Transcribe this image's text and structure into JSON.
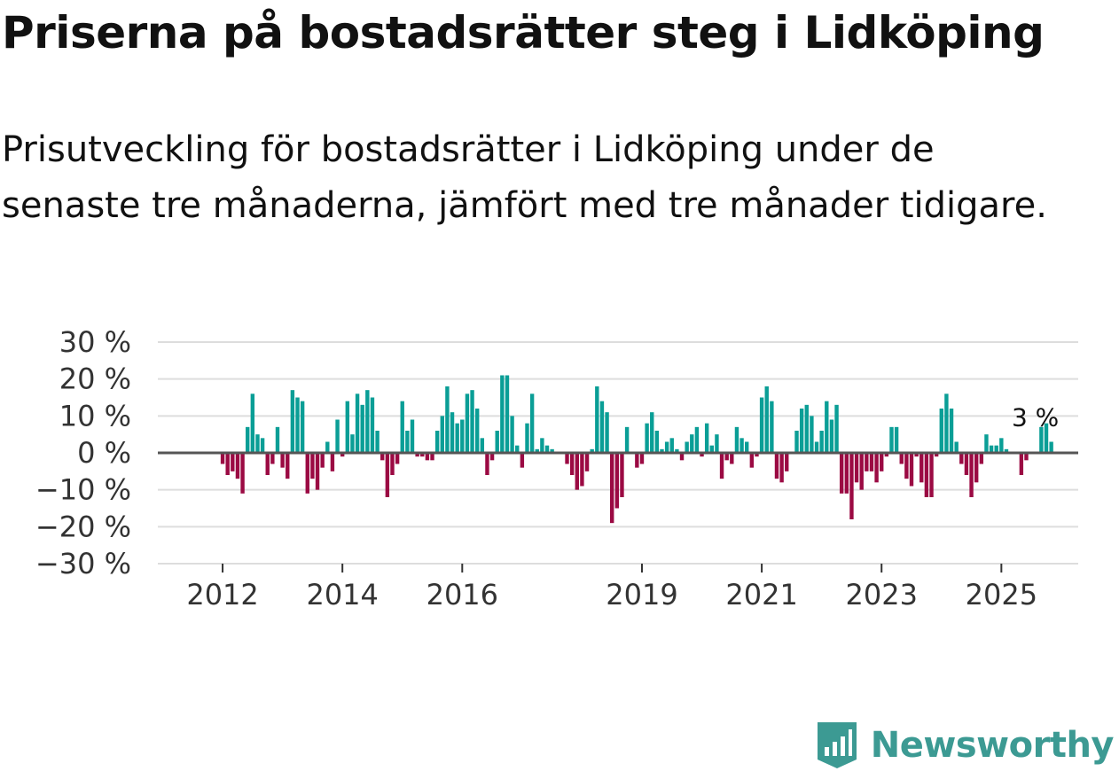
{
  "title": "Priserna på bostadsrätter steg i Lidköping",
  "subtitle": "Prisutveckling för bostadsrätter i Lidköping under de senaste tre månaderna, jämfört med tre månader tidigare.",
  "brand": "Newsworthy",
  "colors": {
    "positive": "#0a9e96",
    "negative": "#9b0a43",
    "grid": "#dddddd",
    "zero": "#555555",
    "brand": "#3c9a93"
  },
  "chart_data": {
    "type": "bar",
    "title": "Priserna på bostadsrätter steg i Lidköping",
    "ylabel": "",
    "xlabel": "",
    "ylim": [
      -30,
      30
    ],
    "yticks": [
      30,
      20,
      10,
      0,
      -10,
      -20,
      -30
    ],
    "ytick_labels": [
      "30 %",
      "20 %",
      "10 %",
      "0 %",
      "−10 %",
      "−20 %",
      "−30 %"
    ],
    "xtick_labels": [
      "2012",
      "2014",
      "2016",
      "2019",
      "2021",
      "2023",
      "2025"
    ],
    "xtick_month_index": [
      12,
      36,
      60,
      96,
      120,
      144,
      168
    ],
    "start": "2011-01",
    "values": [
      0,
      0,
      0,
      0,
      0,
      0,
      0,
      0,
      0,
      0,
      0,
      0,
      -3,
      -6,
      -5,
      -7,
      -11,
      7,
      16,
      5,
      4,
      -6,
      -3,
      7,
      -4,
      -7,
      17,
      15,
      14,
      -11,
      -7,
      -10,
      -4,
      3,
      -5,
      9,
      -1,
      14,
      5,
      16,
      13,
      17,
      15,
      6,
      -2,
      -12,
      -6,
      -3,
      14,
      6,
      9,
      -1,
      -1,
      -2,
      -2,
      6,
      10,
      18,
      11,
      8,
      9,
      16,
      17,
      12,
      4,
      -6,
      -2,
      6,
      21,
      21,
      10,
      2,
      -4,
      8,
      16,
      1,
      4,
      2,
      1,
      0,
      0,
      -3,
      -6,
      -10,
      -9,
      -5,
      1,
      18,
      14,
      11,
      -19,
      -15,
      -12,
      7,
      0,
      -4,
      -3,
      8,
      11,
      6,
      1,
      3,
      4,
      1,
      -2,
      3,
      5,
      7,
      -1,
      8,
      2,
      5,
      -7,
      -2,
      -3,
      7,
      4,
      3,
      -4,
      -1,
      15,
      18,
      14,
      -7,
      -8,
      -5,
      0,
      6,
      12,
      13,
      10,
      3,
      6,
      14,
      9,
      13,
      -11,
      -11,
      -18,
      -8,
      -10,
      -5,
      -5,
      -8,
      -5,
      -1,
      7,
      7,
      -3,
      -7,
      -9,
      -1,
      -8,
      -12,
      -12,
      -1,
      12,
      16,
      12,
      3,
      -3,
      -6,
      -12,
      -8,
      -3,
      5,
      2,
      2,
      4,
      1,
      0,
      0,
      -6,
      -2,
      0,
      0,
      7,
      8,
      3
    ],
    "annotation": {
      "label": "3 %",
      "month_index": 178,
      "value": 3
    }
  }
}
